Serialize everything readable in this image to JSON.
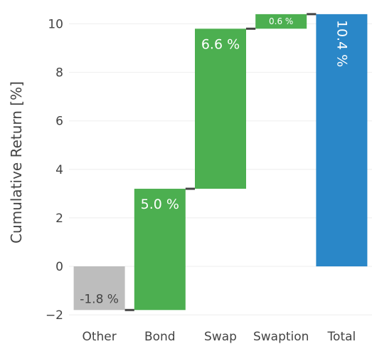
{
  "chart_data": {
    "type": "bar",
    "subtype": "waterfall",
    "title": "",
    "xlabel": "",
    "ylabel": "Cumulative Return [%]",
    "ylim": [
      -2.0,
      10.5
    ],
    "yticks": [
      "−2",
      "0",
      "2",
      "4",
      "6",
      "8",
      "10"
    ],
    "grid": true,
    "categories": [
      "Other",
      "Bond",
      "Swap",
      "Swaption",
      "Total"
    ],
    "bars": [
      {
        "category": "Other",
        "base": 0.0,
        "value": -1.8,
        "label": "-1.8 %",
        "color": "#bdbdbd",
        "label_color": "#444444",
        "kind": "delta"
      },
      {
        "category": "Bond",
        "base": -1.8,
        "value": 5.0,
        "label": "5.0 %",
        "color": "#4caf50",
        "label_color": "#ffffff",
        "kind": "delta"
      },
      {
        "category": "Swap",
        "base": 3.2,
        "value": 6.6,
        "label": "6.6 %",
        "color": "#4caf50",
        "label_color": "#ffffff",
        "kind": "delta"
      },
      {
        "category": "Swaption",
        "base": 9.8,
        "value": 0.6,
        "label": "0.6 %",
        "color": "#4caf50",
        "label_color": "#ffffff",
        "kind": "delta"
      },
      {
        "category": "Total",
        "base": 0.0,
        "value": 10.4,
        "label": "10.4 %",
        "color": "#2a87c8",
        "label_color": "#ffffff",
        "kind": "total"
      }
    ],
    "connector_color": "#444444"
  }
}
